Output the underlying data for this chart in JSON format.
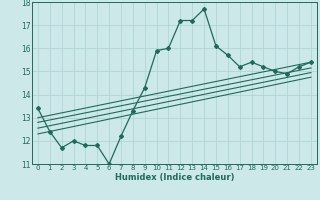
{
  "xlabel": "Humidex (Indice chaleur)",
  "bg_color": "#cce8e8",
  "line_color": "#1e6b5a",
  "grid_color": "#b0d4d4",
  "xlim": [
    -0.5,
    23.5
  ],
  "ylim": [
    11,
    18
  ],
  "xticks": [
    0,
    1,
    2,
    3,
    4,
    5,
    6,
    7,
    8,
    9,
    10,
    11,
    12,
    13,
    14,
    15,
    16,
    17,
    18,
    19,
    20,
    21,
    22,
    23
  ],
  "yticks": [
    11,
    12,
    13,
    14,
    15,
    16,
    17,
    18
  ],
  "main_line": [
    [
      0,
      13.4
    ],
    [
      1,
      12.4
    ],
    [
      2,
      11.7
    ],
    [
      3,
      12.0
    ],
    [
      4,
      11.8
    ],
    [
      5,
      11.8
    ],
    [
      6,
      11.0
    ],
    [
      7,
      12.2
    ],
    [
      8,
      13.3
    ],
    [
      9,
      14.3
    ],
    [
      10,
      15.9
    ],
    [
      11,
      16.0
    ],
    [
      12,
      17.2
    ],
    [
      13,
      17.2
    ],
    [
      14,
      17.7
    ],
    [
      15,
      16.1
    ],
    [
      16,
      15.7
    ],
    [
      17,
      15.2
    ],
    [
      18,
      15.4
    ],
    [
      19,
      15.2
    ],
    [
      20,
      15.0
    ],
    [
      21,
      14.9
    ],
    [
      22,
      15.2
    ],
    [
      23,
      15.4
    ]
  ],
  "trend_lines": [
    [
      [
        0,
        13.0
      ],
      [
        23,
        15.4
      ]
    ],
    [
      [
        0,
        12.8
      ],
      [
        23,
        15.15
      ]
    ],
    [
      [
        0,
        12.55
      ],
      [
        23,
        14.95
      ]
    ],
    [
      [
        0,
        12.3
      ],
      [
        23,
        14.75
      ]
    ]
  ]
}
